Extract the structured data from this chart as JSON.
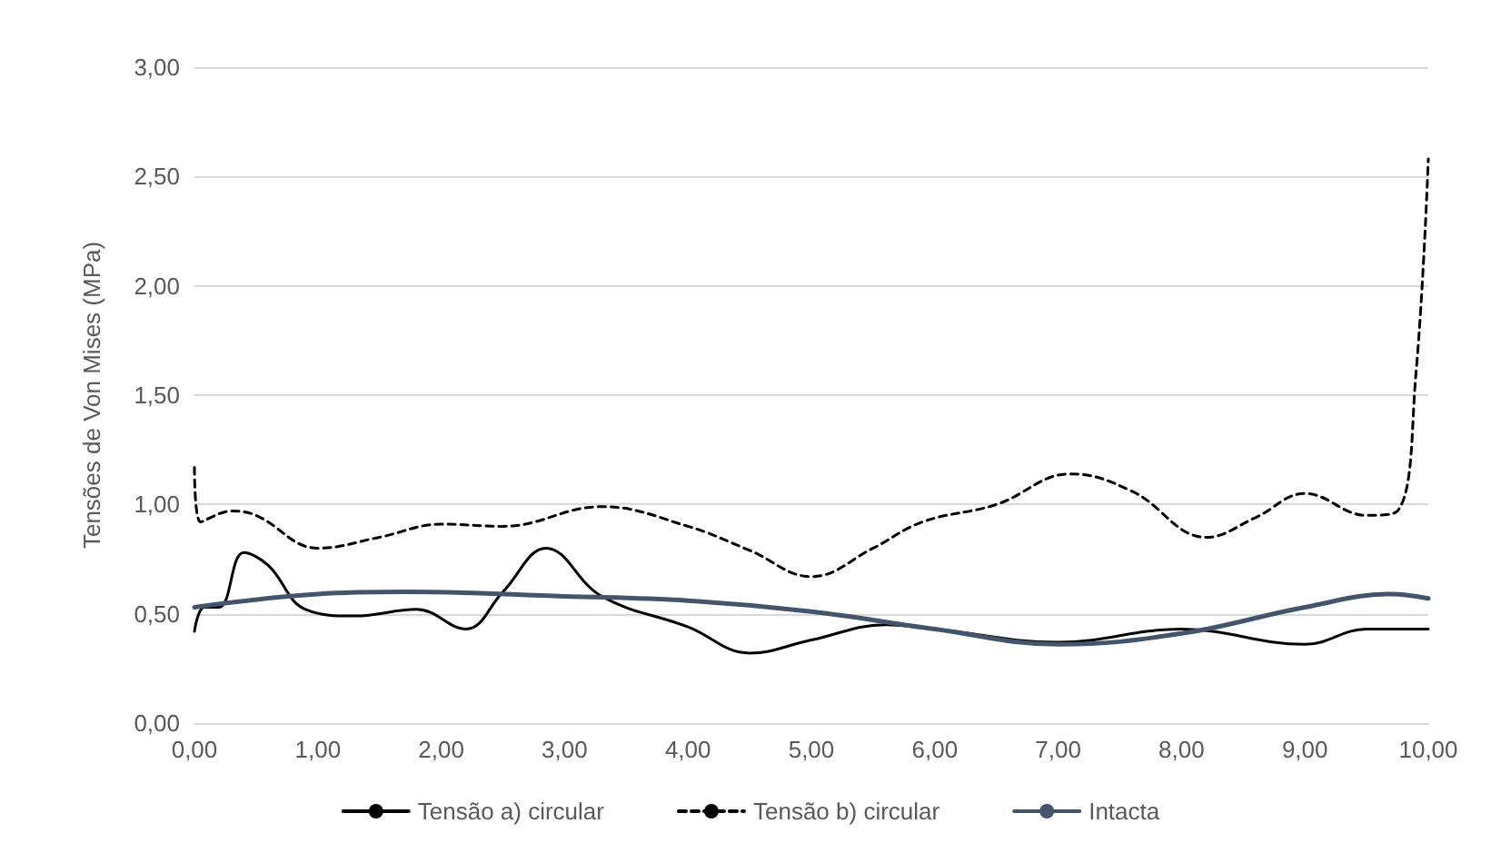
{
  "chart_data": {
    "type": "line",
    "ylabel": "Tensões de Von Mises (MPa)",
    "xlim": [
      0,
      10
    ],
    "ylim": [
      0,
      3
    ],
    "xticks": [
      {
        "value": 0,
        "label": "0,00"
      },
      {
        "value": 1,
        "label": "1,00"
      },
      {
        "value": 2,
        "label": "2,00"
      },
      {
        "value": 3,
        "label": "3,00"
      },
      {
        "value": 4,
        "label": "4,00"
      },
      {
        "value": 5,
        "label": "5,00"
      },
      {
        "value": 6,
        "label": "6,00"
      },
      {
        "value": 7,
        "label": "7,00"
      },
      {
        "value": 8,
        "label": "8,00"
      },
      {
        "value": 9,
        "label": "9,00"
      },
      {
        "value": 10,
        "label": "10,00"
      }
    ],
    "yticks": [
      {
        "value": 0,
        "label": "0,00"
      },
      {
        "value": 0.5,
        "label": "0,50"
      },
      {
        "value": 1,
        "label": "1,00"
      },
      {
        "value": 1.5,
        "label": "1,50"
      },
      {
        "value": 2,
        "label": "2,00"
      },
      {
        "value": 2.5,
        "label": "2,50"
      },
      {
        "value": 3,
        "label": "3,00"
      }
    ],
    "grid": "y",
    "legend": "bottom",
    "marker": "none",
    "series": [
      {
        "name": "Tensão a) circular",
        "color": "#000000",
        "line_style": "solid",
        "x": [
          0,
          0.08,
          0.2,
          0.4,
          0.6,
          0.9,
          1.3,
          1.8,
          2.2,
          2.5,
          2.85,
          3.3,
          4.0,
          4.5,
          5.0,
          5.6,
          6.0,
          7.0,
          8.0,
          9.0,
          9.5,
          10
        ],
        "values": [
          0.42,
          0.53,
          0.53,
          0.78,
          0.72,
          0.52,
          0.49,
          0.52,
          0.43,
          0.6,
          0.8,
          0.58,
          0.44,
          0.32,
          0.38,
          0.45,
          0.43,
          0.37,
          0.43,
          0.36,
          0.43,
          0.43
        ]
      },
      {
        "name": "Tensão b) circular",
        "color": "#000000",
        "line_style": "dashed",
        "x": [
          0,
          0.05,
          0.3,
          0.5,
          1.0,
          1.5,
          2.0,
          2.5,
          3.3,
          4.0,
          4.5,
          5.0,
          5.5,
          5.9,
          6.5,
          7.1,
          7.6,
          8.2,
          8.6,
          9.0,
          9.5,
          9.75,
          9.9,
          10
        ],
        "values": [
          1.17,
          0.92,
          0.97,
          0.95,
          0.8,
          0.85,
          0.91,
          0.9,
          0.99,
          0.9,
          0.79,
          0.67,
          0.8,
          0.92,
          1.0,
          1.14,
          1.06,
          0.85,
          0.94,
          1.05,
          0.95,
          0.97,
          1.6,
          2.58
        ]
      },
      {
        "name": "Intacta",
        "color": "#44546a",
        "line_style": "solid",
        "x": [
          0,
          1,
          1.7,
          3,
          4,
          5,
          6,
          7,
          8,
          9,
          9.7,
          10
        ],
        "values": [
          0.53,
          0.59,
          0.6,
          0.58,
          0.56,
          0.51,
          0.43,
          0.36,
          0.41,
          0.53,
          0.59,
          0.57
        ]
      }
    ]
  }
}
